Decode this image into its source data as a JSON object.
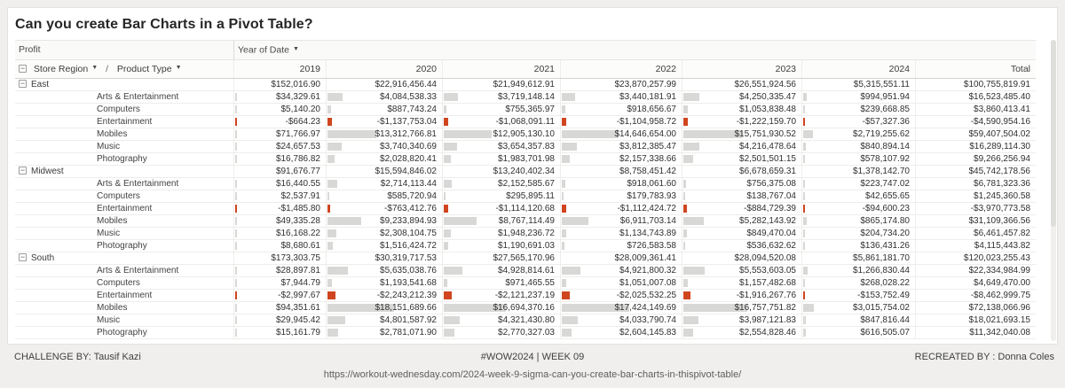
{
  "page": {
    "title": "Can you create Bar Charts in a Pivot Table?"
  },
  "footer": {
    "challenge_by": "CHALLENGE BY: Tausif Kazi",
    "hashtag": "#WOW2024  |  WEEK 09",
    "recreated_by": "RECREATED BY : Donna Coles",
    "url": "https://workout-wednesday.com/2024-week-9-sigma-can-you-create-bar-charts-in-thispivot-table/"
  },
  "pivot": {
    "measure_label": "Profit",
    "column_field_label": "Year of Date",
    "row_field_region_label": "Store Region",
    "row_field_separator": "/",
    "row_field_product_label": "Product Type",
    "columns": [
      "2019",
      "2020",
      "2021",
      "2022",
      "2023",
      "2024",
      "Total"
    ],
    "bar_scale_max": 18151689.66,
    "bar_max_pct": 58,
    "colors": {
      "positive_bar": "#d8d8d6",
      "negative_bar": "#d0451f"
    },
    "groups": [
      {
        "label": "East",
        "values": [
          "$152,016.90",
          "$22,916,456.44",
          "$21,949,612.91",
          "$23,870,257.99",
          "$26,551,924.56",
          "$5,315,551.11",
          "$100,755,819.91"
        ],
        "children": [
          {
            "label": "Arts & Entertainment",
            "values": [
              "$34,329.61",
              "$4,084,538.33",
              "$3,719,148.14",
              "$3,440,181.91",
              "$4,250,335.47",
              "$994,951.94",
              "$16,523,485.40"
            ]
          },
          {
            "label": "Computers",
            "values": [
              "$5,140.20",
              "$887,743.24",
              "$755,365.97",
              "$918,656.67",
              "$1,053,838.48",
              "$239,668.85",
              "$3,860,413.41"
            ]
          },
          {
            "label": "Entertainment",
            "values": [
              "-$664.23",
              "-$1,137,753.04",
              "-$1,068,091.11",
              "-$1,104,958.72",
              "-$1,222,159.70",
              "-$57,327.36",
              "-$4,590,954.16"
            ]
          },
          {
            "label": "Mobiles",
            "values": [
              "$71,766.97",
              "$13,312,766.81",
              "$12,905,130.10",
              "$14,646,654.00",
              "$15,751,930.52",
              "$2,719,255.62",
              "$59,407,504.02"
            ]
          },
          {
            "label": "Music",
            "values": [
              "$24,657.53",
              "$3,740,340.69",
              "$3,654,357.83",
              "$3,812,385.47",
              "$4,216,478.64",
              "$840,894.14",
              "$16,289,114.30"
            ]
          },
          {
            "label": "Photography",
            "values": [
              "$16,786.82",
              "$2,028,820.41",
              "$1,983,701.98",
              "$2,157,338.66",
              "$2,501,501.15",
              "$578,107.92",
              "$9,266,256.94"
            ]
          }
        ]
      },
      {
        "label": "Midwest",
        "values": [
          "$91,676.77",
          "$15,594,846.02",
          "$13,240,402.34",
          "$8,758,451.42",
          "$6,678,659.31",
          "$1,378,142.70",
          "$45,742,178.56"
        ],
        "children": [
          {
            "label": "Arts & Entertainment",
            "values": [
              "$16,440.55",
              "$2,714,113.44",
              "$2,152,585.67",
              "$918,061.60",
              "$756,375.08",
              "$223,747.02",
              "$6,781,323.36"
            ]
          },
          {
            "label": "Computers",
            "values": [
              "$2,537.91",
              "$585,720.94",
              "$295,895.11",
              "$179,783.93",
              "$138,767.04",
              "$42,655.65",
              "$1,245,360.58"
            ]
          },
          {
            "label": "Entertainment",
            "values": [
              "-$1,485.80",
              "-$763,412.76",
              "-$1,114,120.68",
              "-$1,112,424.72",
              "-$884,729.39",
              "-$94,600.23",
              "-$3,970,773.58"
            ]
          },
          {
            "label": "Mobiles",
            "values": [
              "$49,335.28",
              "$9,233,894.93",
              "$8,767,114.49",
              "$6,911,703.14",
              "$5,282,143.92",
              "$865,174.80",
              "$31,109,366.56"
            ]
          },
          {
            "label": "Music",
            "values": [
              "$16,168.22",
              "$2,308,104.75",
              "$1,948,236.72",
              "$1,134,743.89",
              "$849,470.04",
              "$204,734.20",
              "$6,461,457.82"
            ]
          },
          {
            "label": "Photography",
            "values": [
              "$8,680.61",
              "$1,516,424.72",
              "$1,190,691.03",
              "$726,583.58",
              "$536,632.62",
              "$136,431.26",
              "$4,115,443.82"
            ]
          }
        ]
      },
      {
        "label": "South",
        "values": [
          "$173,303.75",
          "$30,319,717.53",
          "$27,565,170.96",
          "$28,009,361.41",
          "$28,094,520.08",
          "$5,861,181.70",
          "$120,023,255.43"
        ],
        "children": [
          {
            "label": "Arts & Entertainment",
            "values": [
              "$28,897.81",
              "$5,635,038.76",
              "$4,928,814.61",
              "$4,921,800.32",
              "$5,553,603.05",
              "$1,266,830.44",
              "$22,334,984.99"
            ]
          },
          {
            "label": "Computers",
            "values": [
              "$7,944.79",
              "$1,193,541.68",
              "$971,465.55",
              "$1,051,007.08",
              "$1,157,482.68",
              "$268,028.22",
              "$4,649,470.00"
            ]
          },
          {
            "label": "Entertainment",
            "values": [
              "-$2,997.67",
              "-$2,243,212.39",
              "-$2,121,237.19",
              "-$2,025,532.25",
              "-$1,916,267.76",
              "-$153,752.49",
              "-$8,462,999.75"
            ]
          },
          {
            "label": "Mobiles",
            "values": [
              "$94,351.61",
              "$18,151,689.66",
              "$16,694,370.16",
              "$17,424,149.69",
              "$16,757,751.82",
              "$3,015,754.02",
              "$72,138,066.96"
            ]
          },
          {
            "label": "Music",
            "values": [
              "$29,945.42",
              "$4,801,587.92",
              "$4,321,430.80",
              "$4,033,790.74",
              "$3,987,121.83",
              "$847,816.44",
              "$18,021,693.15"
            ]
          },
          {
            "label": "Photography",
            "values": [
              "$15,161.79",
              "$2,781,071.90",
              "$2,770,327.03",
              "$2,604,145.83",
              "$2,554,828.46",
              "$616,505.07",
              "$11,342,040.08"
            ]
          }
        ]
      }
    ]
  }
}
